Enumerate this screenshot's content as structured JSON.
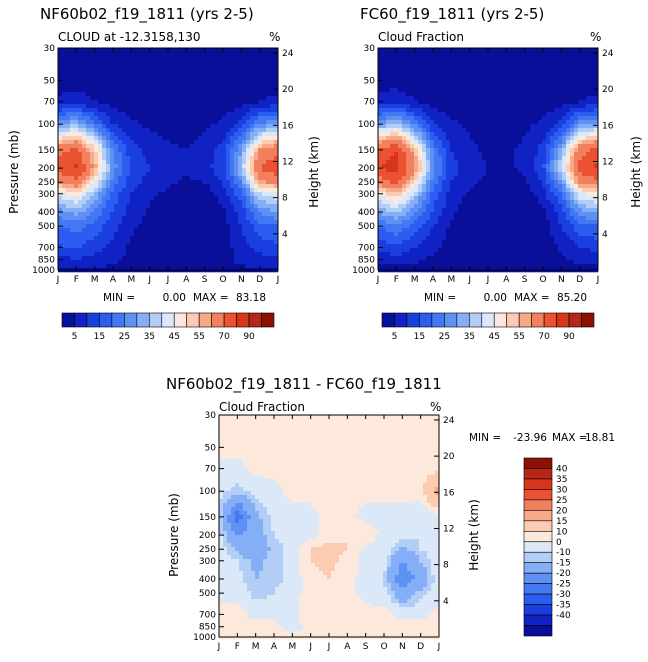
{
  "chart_data": [
    {
      "type": "contour",
      "title": "NF60b02_f19_1811 (yrs 2-5)",
      "subtitle": "CLOUD at -12.3158,130",
      "units": "%",
      "xlabel": "",
      "ylabel": "Pressure (mb)",
      "ylabel_right": "Height (km)",
      "x_ticks": [
        "J",
        "F",
        "M",
        "A",
        "M",
        "J",
        "J",
        "A",
        "S",
        "O",
        "N",
        "D",
        "J"
      ],
      "pressure_ticks": [
        "30",
        "50",
        "70",
        "100",
        "150",
        "200",
        "250",
        "300",
        "400",
        "500",
        "700",
        "850",
        "1000"
      ],
      "pressure_values": [
        30,
        50,
        70,
        100,
        150,
        200,
        250,
        300,
        400,
        500,
        700,
        850,
        1000
      ],
      "height_ticks": [
        "24",
        "20",
        "16",
        "12",
        "8",
        "4"
      ],
      "height_values": [
        24,
        20,
        16,
        12,
        8,
        4
      ],
      "stats_min_label": "MIN =",
      "stats_min": "0.00",
      "stats_max_label": "MAX =",
      "stats_max": "83.18",
      "colorbar_labels": [
        "5",
        "15",
        "25",
        "35",
        "45",
        "55",
        "70",
        "90"
      ],
      "field": {
        "p": [
          30,
          50,
          70,
          100,
          150,
          200,
          250,
          300,
          400,
          500,
          700,
          850,
          1000
        ],
        "month": [
          0,
          1,
          2,
          3,
          4,
          5,
          6,
          7,
          8,
          9,
          10,
          11,
          12
        ],
        "values": [
          [
            2,
            2,
            2,
            2,
            2,
            2,
            2,
            2,
            2,
            2,
            2,
            2,
            2
          ],
          [
            3,
            3,
            3,
            2,
            2,
            2,
            2,
            2,
            2,
            2,
            2,
            3,
            3
          ],
          [
            6,
            7,
            5,
            3,
            2,
            2,
            2,
            2,
            2,
            2,
            3,
            5,
            6
          ],
          [
            28,
            34,
            22,
            10,
            6,
            4,
            3,
            3,
            4,
            6,
            12,
            26,
            30
          ],
          [
            66,
            72,
            52,
            24,
            12,
            8,
            6,
            5,
            7,
            12,
            30,
            60,
            68
          ],
          [
            76,
            82,
            58,
            28,
            14,
            10,
            7,
            6,
            8,
            14,
            36,
            70,
            78
          ],
          [
            60,
            66,
            46,
            22,
            12,
            8,
            6,
            4,
            5,
            10,
            26,
            58,
            62
          ],
          [
            42,
            48,
            34,
            18,
            10,
            6,
            4,
            2,
            2,
            8,
            18,
            40,
            44
          ],
          [
            28,
            32,
            24,
            14,
            8,
            4,
            2,
            0,
            0,
            4,
            12,
            26,
            30
          ],
          [
            20,
            22,
            18,
            12,
            6,
            3,
            1,
            0,
            0,
            3,
            10,
            18,
            20
          ],
          [
            14,
            16,
            12,
            8,
            4,
            2,
            0,
            0,
            0,
            2,
            8,
            12,
            14
          ],
          [
            8,
            10,
            8,
            6,
            4,
            3,
            2,
            2,
            3,
            4,
            6,
            8,
            8
          ],
          [
            4,
            4,
            4,
            4,
            4,
            4,
            4,
            4,
            4,
            4,
            4,
            4,
            4
          ]
        ]
      }
    },
    {
      "type": "contour",
      "title": "FC60_f19_1811 (yrs 2-5)",
      "subtitle": "Cloud Fraction",
      "units": "%",
      "ylabel": "",
      "ylabel_right": "Height (km)",
      "x_ticks": [
        "J",
        "F",
        "M",
        "A",
        "M",
        "J",
        "J",
        "A",
        "S",
        "O",
        "N",
        "D",
        "J"
      ],
      "pressure_ticks": [
        "30",
        "50",
        "70",
        "100",
        "150",
        "200",
        "250",
        "300",
        "400",
        "500",
        "700",
        "850",
        "1000"
      ],
      "pressure_values": [
        30,
        50,
        70,
        100,
        150,
        200,
        250,
        300,
        400,
        500,
        700,
        850,
        1000
      ],
      "height_ticks": [
        "24",
        "20",
        "16",
        "12",
        "8",
        "4"
      ],
      "height_values": [
        24,
        20,
        16,
        12,
        8,
        4
      ],
      "stats_min_label": "MIN =",
      "stats_min": "0.00",
      "stats_max_label": "MAX =",
      "stats_max": "85.20",
      "colorbar_labels": [
        "5",
        "15",
        "25",
        "35",
        "45",
        "55",
        "70",
        "90"
      ],
      "field": {
        "p": [
          30,
          50,
          70,
          100,
          150,
          200,
          250,
          300,
          400,
          500,
          700,
          850,
          1000
        ],
        "month": [
          0,
          1,
          2,
          3,
          4,
          5,
          6,
          7,
          8,
          9,
          10,
          11,
          12
        ],
        "values": [
          [
            2,
            2,
            2,
            2,
            2,
            2,
            2,
            2,
            2,
            2,
            2,
            2,
            2
          ],
          [
            3,
            3,
            3,
            2,
            2,
            2,
            2,
            2,
            2,
            2,
            2,
            3,
            3
          ],
          [
            6,
            8,
            5,
            3,
            2,
            2,
            2,
            2,
            2,
            2,
            3,
            5,
            6
          ],
          [
            30,
            36,
            24,
            10,
            6,
            4,
            3,
            3,
            4,
            6,
            12,
            28,
            32
          ],
          [
            72,
            80,
            56,
            24,
            10,
            6,
            4,
            4,
            6,
            12,
            32,
            66,
            74
          ],
          [
            80,
            85,
            62,
            28,
            12,
            8,
            5,
            4,
            6,
            14,
            40,
            74,
            82
          ],
          [
            64,
            72,
            50,
            22,
            10,
            6,
            4,
            3,
            4,
            10,
            28,
            62,
            66
          ],
          [
            46,
            54,
            38,
            18,
            8,
            4,
            2,
            2,
            2,
            8,
            20,
            44,
            48
          ],
          [
            30,
            36,
            26,
            14,
            6,
            2,
            1,
            0,
            0,
            4,
            12,
            28,
            32
          ],
          [
            20,
            24,
            18,
            10,
            4,
            2,
            0,
            0,
            0,
            2,
            10,
            18,
            20
          ],
          [
            12,
            14,
            10,
            6,
            3,
            1,
            0,
            0,
            0,
            1,
            6,
            10,
            12
          ],
          [
            6,
            8,
            6,
            4,
            3,
            2,
            2,
            2,
            2,
            3,
            4,
            6,
            6
          ],
          [
            3,
            3,
            3,
            3,
            3,
            3,
            3,
            3,
            3,
            3,
            3,
            3,
            3
          ]
        ]
      }
    },
    {
      "type": "contour",
      "title": "NF60b02_f19_1811 - FC60_f19_1811",
      "subtitle": "Cloud Fraction",
      "units": "%",
      "ylabel": "Pressure (mb)",
      "ylabel_right": "Height (km)",
      "x_ticks": [
        "J",
        "F",
        "M",
        "A",
        "M",
        "J",
        "J",
        "A",
        "S",
        "O",
        "N",
        "D",
        "J"
      ],
      "pressure_ticks": [
        "30",
        "50",
        "70",
        "100",
        "150",
        "200",
        "250",
        "300",
        "400",
        "500",
        "700",
        "850",
        "1000"
      ],
      "pressure_values": [
        30,
        50,
        70,
        100,
        150,
        200,
        250,
        300,
        400,
        500,
        700,
        850,
        1000
      ],
      "height_ticks": [
        "24",
        "20",
        "16",
        "12",
        "8",
        "4"
      ],
      "height_values": [
        24,
        20,
        16,
        12,
        8,
        4
      ],
      "stats_min_label": "MIN =",
      "stats_min": "-23.96",
      "stats_max_label": "MAX =",
      "stats_max": "18.81",
      "colorbar_labels": [
        "40",
        "35",
        "30",
        "25",
        "20",
        "15",
        "10",
        "0",
        "-10",
        "-15",
        "-20",
        "-25",
        "-30",
        "-35",
        "-40"
      ],
      "field": {
        "p": [
          30,
          50,
          70,
          100,
          150,
          200,
          250,
          300,
          400,
          500,
          700,
          850,
          1000
        ],
        "month": [
          0,
          1,
          2,
          3,
          4,
          5,
          6,
          7,
          8,
          9,
          10,
          11,
          12
        ],
        "values": [
          [
            1,
            1,
            1,
            1,
            1,
            1,
            1,
            1,
            1,
            1,
            1,
            1,
            1
          ],
          [
            1,
            1,
            1,
            1,
            1,
            1,
            1,
            1,
            1,
            1,
            1,
            1,
            1
          ],
          [
            -1,
            -1,
            1,
            1,
            1,
            1,
            1,
            1,
            1,
            1,
            1,
            1,
            1
          ],
          [
            -2,
            -4,
            -2,
            -1,
            1,
            1,
            1,
            1,
            1,
            1,
            1,
            1,
            14
          ],
          [
            -3,
            -18,
            -6,
            -2,
            -1,
            -1,
            1,
            1,
            -1,
            -1,
            -1,
            -2,
            -2
          ],
          [
            -2,
            -10,
            -7,
            -3,
            -2,
            -1,
            2,
            3,
            2,
            -1,
            -2,
            -3,
            -2
          ],
          [
            -1,
            -6,
            -8,
            -4,
            -2,
            3,
            4,
            3,
            -1,
            -1,
            -6,
            -3,
            -1
          ],
          [
            -1,
            -3,
            -6,
            -4,
            -2,
            3,
            4,
            2,
            -1,
            -2,
            -10,
            -5,
            -1
          ],
          [
            -1,
            -2,
            -5,
            -4,
            -2,
            2,
            3,
            1,
            -1,
            -3,
            -14,
            -8,
            -1
          ],
          [
            -1,
            -1,
            -4,
            -3,
            -1,
            1,
            2,
            1,
            -1,
            -2,
            -8,
            -4,
            -1
          ],
          [
            1,
            1,
            -1,
            -1,
            -1,
            3,
            1,
            3,
            1,
            1,
            -1,
            -1,
            1
          ],
          [
            1,
            1,
            1,
            1,
            -2,
            1,
            1,
            1,
            1,
            1,
            1,
            1,
            1
          ],
          [
            1,
            1,
            1,
            1,
            1,
            1,
            1,
            1,
            1,
            1,
            1,
            1,
            1
          ]
        ]
      }
    }
  ],
  "colors": {
    "abs_scale": [
      "#0a0f9a",
      "#1022c4",
      "#1a3ee0",
      "#2b5df0",
      "#4478f2",
      "#5f91f4",
      "#84aef6",
      "#b2cdf6",
      "#dbe8f8",
      "#fde9dc",
      "#fbcbb2",
      "#f8a98a",
      "#f2805f",
      "#ea5232",
      "#d8361c",
      "#bb2515",
      "#8c1008"
    ],
    "diff_scale": [
      "#0a0f9a",
      "#1022c4",
      "#1a3ee0",
      "#2b5df0",
      "#4478f2",
      "#5f91f4",
      "#84aef6",
      "#b2cdf6",
      "#dbe8f8",
      "#fde9dc",
      "#fbcbb2",
      "#f8a98a",
      "#f2805f",
      "#ea5232",
      "#d8361c",
      "#bb2515",
      "#8c1008"
    ]
  }
}
